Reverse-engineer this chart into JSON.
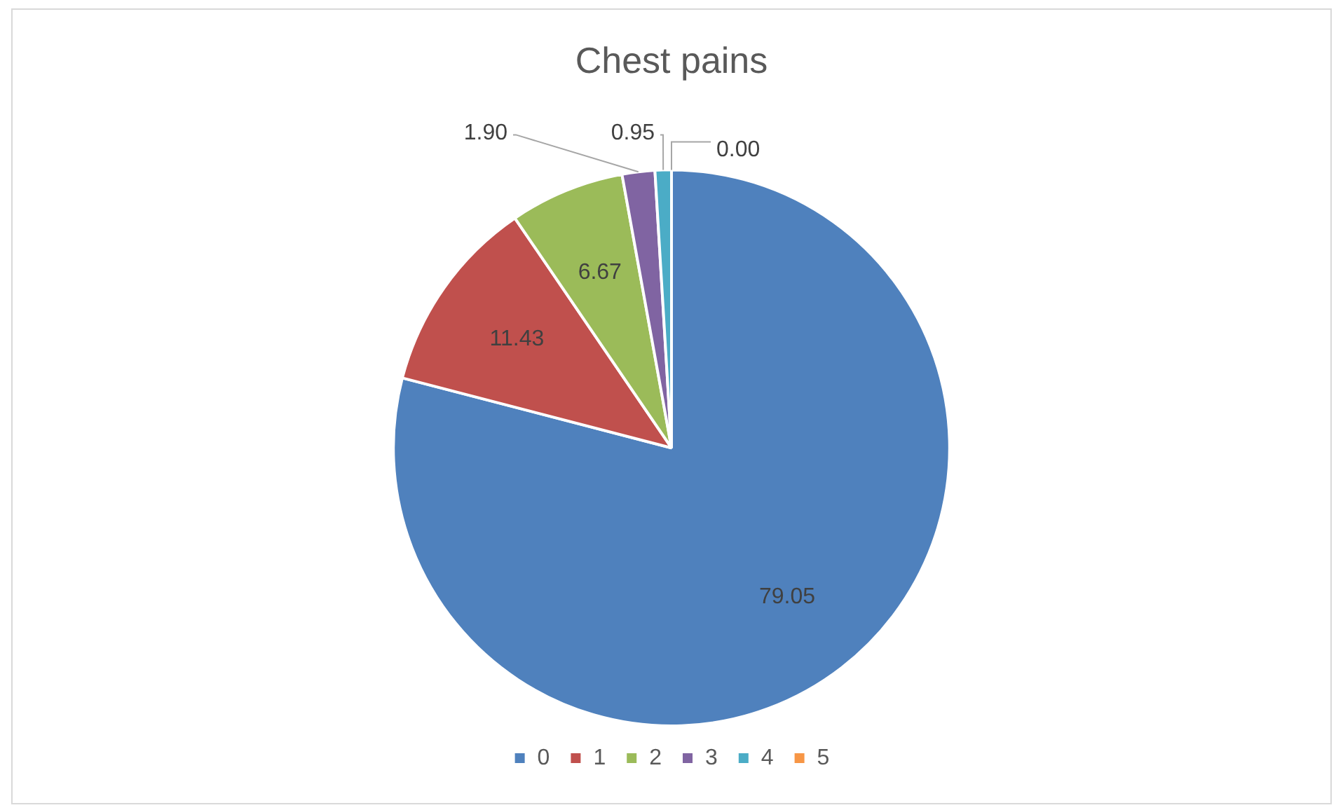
{
  "chart_data": {
    "type": "pie",
    "title": "Chest pains",
    "categories": [
      "0",
      "1",
      "2",
      "3",
      "4",
      "5"
    ],
    "values": [
      79.05,
      11.43,
      6.67,
      1.9,
      0.95,
      0.0
    ],
    "value_labels": [
      "79.05",
      "11.43",
      "6.67",
      "1.90",
      "0.95",
      "0.00"
    ],
    "colors": [
      "#4f81bd",
      "#c0504d",
      "#9bbb59",
      "#8064a2",
      "#4bacc6",
      "#f79646"
    ],
    "legend": "bottom"
  }
}
